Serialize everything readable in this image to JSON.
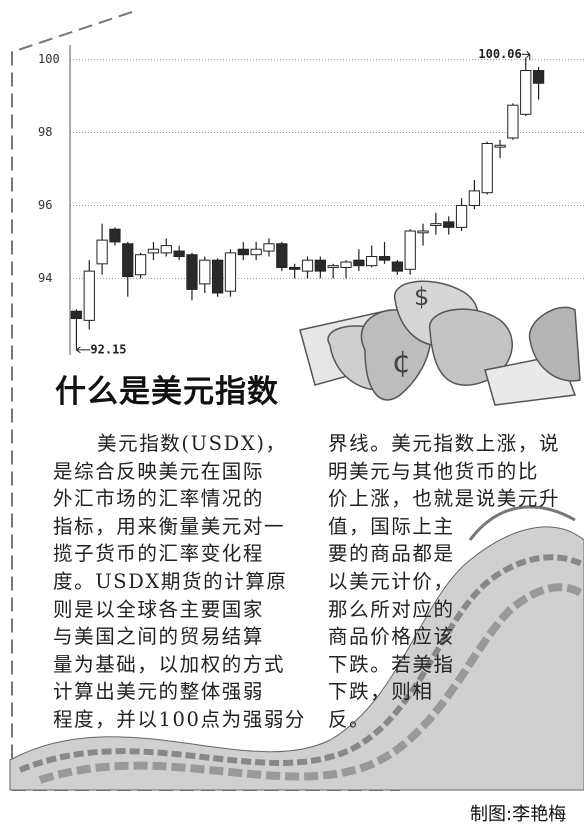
{
  "chart_data": {
    "type": "candlestick",
    "open": [
      93.1,
      92.85,
      94.4,
      95.35,
      94.95,
      94.1,
      94.7,
      94.7,
      94.75,
      94.65,
      93.85,
      94.5,
      93.65,
      94.8,
      94.65,
      94.75,
      94.95,
      94.3,
      94.2,
      94.5,
      94.3,
      94.3,
      94.5,
      94.35,
      94.6,
      94.45,
      94.25,
      95.25,
      95.45,
      95.55,
      95.4,
      96.0,
      96.35,
      97.6,
      97.85,
      98.5,
      99.7
    ],
    "high": [
      93.15,
      94.5,
      95.5,
      95.4,
      95.0,
      94.7,
      95.0,
      95.1,
      94.9,
      94.7,
      94.6,
      94.55,
      94.8,
      95.0,
      95.0,
      95.1,
      95.0,
      94.4,
      94.6,
      94.6,
      94.4,
      94.5,
      94.8,
      94.9,
      95.0,
      94.5,
      95.35,
      95.5,
      95.8,
      95.7,
      96.2,
      96.7,
      97.75,
      97.8,
      98.8,
      100.06,
      99.8
    ],
    "low": [
      92.15,
      92.6,
      94.1,
      94.9,
      93.5,
      94.0,
      94.5,
      94.6,
      94.5,
      93.4,
      93.6,
      93.5,
      93.5,
      94.5,
      94.5,
      94.6,
      94.2,
      94.0,
      94.0,
      94.0,
      94.0,
      94.0,
      94.2,
      94.3,
      94.4,
      94.1,
      94.1,
      94.9,
      95.2,
      95.2,
      95.3,
      95.9,
      96.3,
      97.3,
      97.8,
      98.45,
      98.9
    ],
    "close": [
      92.9,
      94.2,
      95.05,
      95.0,
      94.05,
      94.65,
      94.8,
      94.9,
      94.6,
      93.7,
      94.5,
      93.6,
      94.7,
      94.65,
      94.8,
      94.95,
      94.3,
      94.25,
      94.5,
      94.2,
      94.35,
      94.45,
      94.35,
      94.6,
      94.5,
      94.2,
      95.3,
      95.3,
      95.5,
      95.4,
      96.0,
      96.4,
      97.7,
      97.65,
      98.75,
      99.7,
      99.35
    ],
    "up_color": "#ffffff",
    "down_color": "#2a2a2a",
    "ylim": [
      91.9,
      100.4
    ],
    "yticks": [
      94,
      96,
      98,
      100
    ],
    "grid": true,
    "annotations": [
      {
        "label": "100.06",
        "value": 100.06
      },
      {
        "label": "92.15",
        "value": 92.15
      }
    ]
  },
  "article": {
    "title": "什么是美元指数",
    "column_1": [
      "美元指数(USDX)，",
      "是综合反映美元在国际",
      "外汇市场的汇率情况的",
      "指标，用来衡量美元对一",
      "揽子货币的汇率变化程",
      "度。USDX期货的计算原",
      "则是以全球各主要国家",
      "与美国之间的贸易结算",
      "量为基础，以加权的方式",
      "计算出美元的整体强弱",
      "程度，并以100点为强弱分"
    ],
    "column_2": [
      "界线。美元指数上涨，说",
      "明美元与其他货币的比",
      "价上涨，也就是说美元升",
      "值，国际上主",
      "要的商品都是",
      "以美元计价，",
      "那么所对应的",
      "商品价格应该",
      "下跌。若美指",
      "下跌，则相",
      "反。"
    ],
    "credit": "制图:李艳梅"
  }
}
